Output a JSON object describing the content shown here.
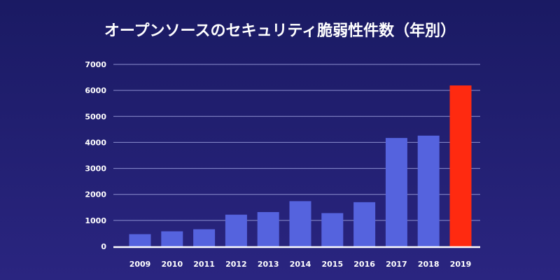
{
  "chart_data": {
    "type": "bar",
    "title": "オープンソースのセキュリティ脆弱性件数（年別）",
    "xlabel": "",
    "ylabel": "",
    "categories": [
      "2009",
      "2010",
      "2011",
      "2012",
      "2013",
      "2014",
      "2015",
      "2016",
      "2017",
      "2018",
      "2019"
    ],
    "values": [
      470,
      580,
      660,
      1220,
      1320,
      1740,
      1280,
      1700,
      4170,
      4260,
      6190
    ],
    "ylim": [
      0,
      7000
    ],
    "yticks": [
      "0",
      "1000",
      "2000",
      "3000",
      "4000",
      "5000",
      "6000",
      "7000"
    ],
    "grid": true,
    "colors": {
      "bar": "#5563de",
      "highlight": "#ff2a10",
      "grid": "#8d8fd0",
      "axis": "#ffffff",
      "text": "#ffffff"
    },
    "highlight_category": "2019"
  }
}
